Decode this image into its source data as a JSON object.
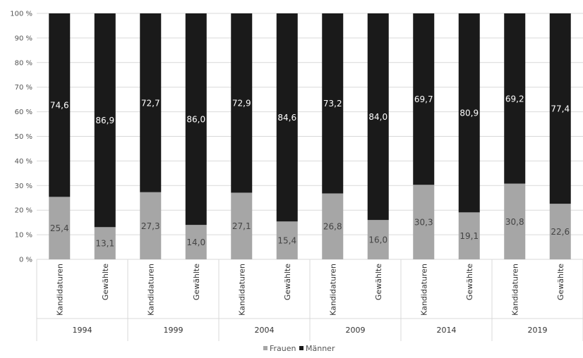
{
  "chart_data": {
    "type": "bar",
    "stacked": true,
    "groups": [
      {
        "label": "1994",
        "categories": [
          "Kandidaturen",
          "Gewählte"
        ]
      },
      {
        "label": "1999",
        "categories": [
          "Kandidaturen",
          "Gewählte"
        ]
      },
      {
        "label": "2004",
        "categories": [
          "Kandidaturen",
          "Gewählte"
        ]
      },
      {
        "label": "2009",
        "categories": [
          "Kandidaturen",
          "Gewählte"
        ]
      },
      {
        "label": "2014",
        "categories": [
          "Kandidaturen",
          "Gewählte"
        ]
      },
      {
        "label": "2019",
        "categories": [
          "Kandidaturen",
          "Gewählte"
        ]
      }
    ],
    "series": [
      {
        "name": "Frauen",
        "color": "#a6a6a6",
        "values": [
          25.4,
          13.1,
          27.3,
          14.0,
          27.1,
          15.4,
          26.8,
          16.0,
          30.3,
          19.1,
          30.8,
          22.6
        ],
        "labels": [
          "25,4",
          "13,1",
          "27,3",
          "14,0",
          "27,1",
          "15,4",
          "26,8",
          "16,0",
          "30,3",
          "19,1",
          "30,8",
          "22,6"
        ]
      },
      {
        "name": "Männer",
        "color": "#1a1a1a",
        "values": [
          74.6,
          86.9,
          72.7,
          86.0,
          72.9,
          84.6,
          73.2,
          84.0,
          69.7,
          80.9,
          69.2,
          77.4
        ],
        "labels": [
          "74,6",
          "86,9",
          "72,7",
          "86,0",
          "72,9",
          "84,6",
          "73,2",
          "84,0",
          "69,7",
          "80,9",
          "69,2",
          "77,4"
        ]
      }
    ],
    "yticks": [
      "0 %",
      "10 %",
      "20 %",
      "30 %",
      "40 %",
      "50 %",
      "60 %",
      "70 %",
      "80 %",
      "90 %",
      "100 %"
    ],
    "ylim": [
      0,
      100
    ],
    "grid": true,
    "legend": "bottom-center"
  }
}
